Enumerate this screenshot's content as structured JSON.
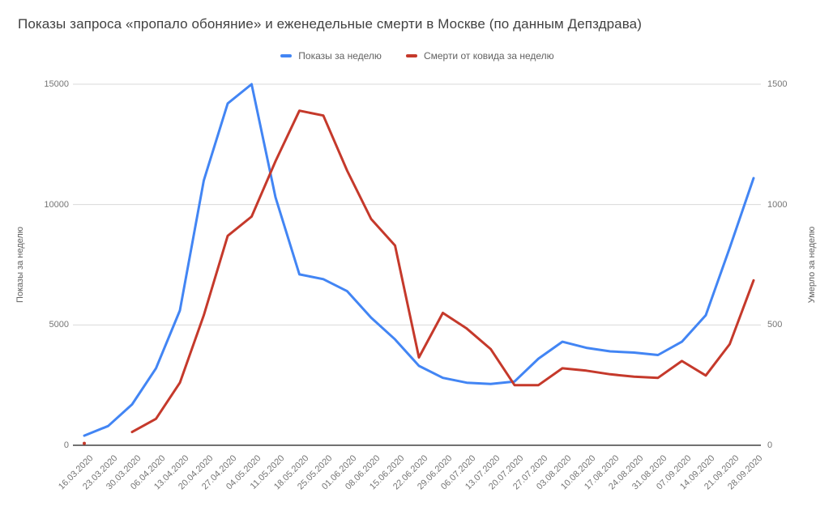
{
  "title": "Показы запроса «пропало обоняние» и еженедельные смерти в Москве (по данным Депздрава)",
  "legend": [
    {
      "label": "Показы за неделю",
      "color": "#4285f4"
    },
    {
      "label": "Смерти от ковида за неделю",
      "color": "#c5392b"
    }
  ],
  "chart_data": {
    "type": "line",
    "categories": [
      "16.03.2020",
      "23.03.2020",
      "30.03.2020",
      "06.04.2020",
      "13.04.2020",
      "20.04.2020",
      "27.04.2020",
      "04.05.2020",
      "11.05.2020",
      "18.05.2020",
      "25.05.2020",
      "01.06.2020",
      "08.06.2020",
      "15.06.2020",
      "22.06.2020",
      "29.06.2020",
      "06.07.2020",
      "13.07.2020",
      "20.07.2020",
      "27.07.2020",
      "03.08.2020",
      "10.08.2020",
      "17.08.2020",
      "24.08.2020",
      "31.08.2020",
      "07.09.2020",
      "14.09.2020",
      "21.09.2020",
      "28.09.2020"
    ],
    "series": [
      {
        "name": "Показы за неделю",
        "axis": "left",
        "color": "#4285f4",
        "values": [
          400,
          800,
          1700,
          3200,
          5600,
          11000,
          14200,
          15000,
          10300,
          7100,
          6900,
          6400,
          5300,
          4400,
          3300,
          2800,
          2600,
          2550,
          2650,
          3600,
          4300,
          4050,
          3900,
          3850,
          3750,
          4300,
          5400,
          8200,
          11100
        ]
      },
      {
        "name": "Смерти от ковида за неделю",
        "axis": "right",
        "color": "#c5392b",
        "values": [
          8,
          null,
          55,
          110,
          260,
          540,
          870,
          950,
          1180,
          1390,
          1370,
          1140,
          940,
          830,
          365,
          550,
          485,
          400,
          250,
          250,
          320,
          310,
          295,
          285,
          280,
          350,
          290,
          420,
          685
        ]
      }
    ],
    "left_axis": {
      "title": "Показы за неделю",
      "ticks": [
        0,
        5000,
        10000,
        15000
      ],
      "range": [
        0,
        15000
      ]
    },
    "right_axis": {
      "title": "Умерло за неделю",
      "ticks": [
        0,
        500,
        1000,
        1500
      ],
      "range": [
        0,
        1500
      ]
    },
    "grid": "horizontal-only",
    "legend_position": "top-center",
    "x_label_rotation": -45
  }
}
